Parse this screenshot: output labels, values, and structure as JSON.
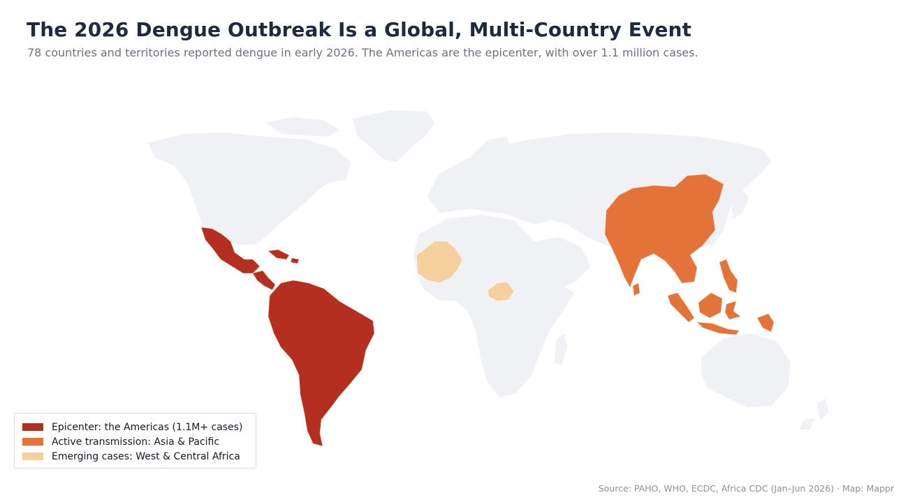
{
  "header": {
    "title": "The 2026 Dengue Outbreak Is a Global, Multi-Country Event",
    "subtitle": "78 countries and territories reported dengue in early 2026. The Americas are the epicenter, with over 1.1 million cases."
  },
  "colors": {
    "background": "#ffffff",
    "land": "#f0f1f4",
    "epicenter": "#b32f1f",
    "active": "#e4733a",
    "emerging": "#f6cf9f",
    "border": "#f3c9b6"
  },
  "legend": {
    "items": [
      {
        "label": "Epicenter: the Americas (1.1M+ cases)",
        "color": "#b32f1f"
      },
      {
        "label": "Active transmission: Asia & Pacific",
        "color": "#e4733a"
      },
      {
        "label": "Emerging cases: West & Central Africa",
        "color": "#f6cf9f"
      }
    ]
  },
  "footer": {
    "source": "Source: PAHO, WHO, ECDC, Africa CDC (Jan–Jun 2026) · Map: Mappr"
  }
}
